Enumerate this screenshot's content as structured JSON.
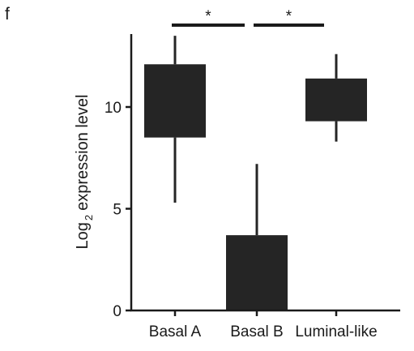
{
  "panel_label": "f",
  "colors": {
    "box": "#252525",
    "axis": "#1a1a1a",
    "background": "#ffffff"
  },
  "chart_data": {
    "type": "box",
    "title": "",
    "ylabel_main": "Log",
    "ylabel_subscript": "2",
    "ylabel_rest": "expression level",
    "xlabel": "",
    "ylim": [
      0,
      13.5
    ],
    "yticks": [
      0,
      5,
      10
    ],
    "grid": false,
    "legend": "none",
    "categories": [
      "Basal A",
      "Basal B",
      "Luminal-like"
    ],
    "boxes": [
      {
        "category": "Basal A",
        "whisker_low": 5.3,
        "q1": 8.5,
        "q3": 12.1,
        "whisker_high": 13.5
      },
      {
        "category": "Basal B",
        "whisker_low": 0,
        "q1": 0,
        "q3": 3.7,
        "whisker_high": 7.2
      },
      {
        "category": "Luminal-like",
        "whisker_low": 8.3,
        "q1": 9.3,
        "q3": 11.4,
        "whisker_high": 12.6
      }
    ],
    "significance": [
      {
        "from": "Basal A",
        "to": "Basal B",
        "label": "*"
      },
      {
        "from": "Basal B",
        "to": "Luminal-like",
        "label": "*"
      }
    ]
  }
}
